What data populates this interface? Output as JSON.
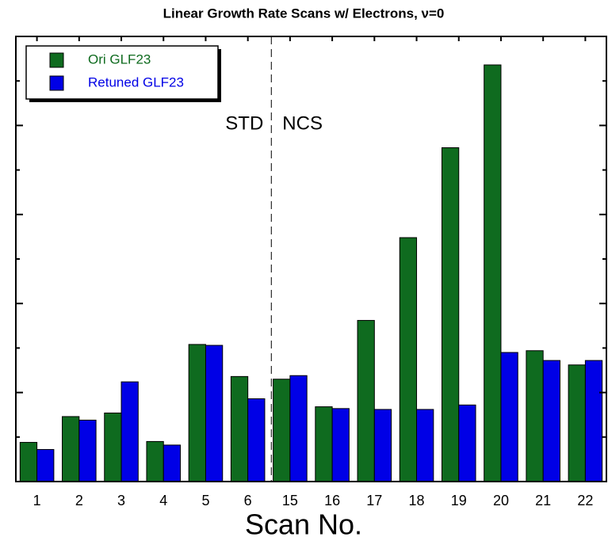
{
  "chart_data": {
    "type": "bar",
    "title": "Linear Growth Rate Scans w/ Electrons, ν=0",
    "x_label": "Scan No.",
    "categories": [
      "1",
      "2",
      "3",
      "4",
      "5",
      "6",
      "15",
      "16",
      "17",
      "18",
      "19",
      "20",
      "21",
      "22"
    ],
    "series": [
      {
        "name": "Ori GLF23",
        "color": "#0f6b1f",
        "values": [
          0.44,
          0.73,
          0.77,
          0.45,
          1.54,
          1.18,
          1.15,
          0.84,
          1.81,
          2.74,
          3.75,
          4.68,
          1.47,
          1.31
        ]
      },
      {
        "name": "Retuned GLF23",
        "color": "#0000e6",
        "values": [
          0.36,
          0.69,
          1.12,
          0.41,
          1.53,
          0.93,
          1.19,
          0.82,
          0.81,
          0.81,
          0.86,
          1.45,
          1.36,
          1.36
        ]
      }
    ],
    "ylim": [
      0,
      5
    ],
    "yticks": [
      0,
      0.5,
      1,
      1.5,
      2,
      2.5,
      3,
      3.5,
      4,
      4.5,
      5
    ],
    "annotations": [
      "STD",
      "NCS"
    ],
    "legend": "top-left"
  }
}
